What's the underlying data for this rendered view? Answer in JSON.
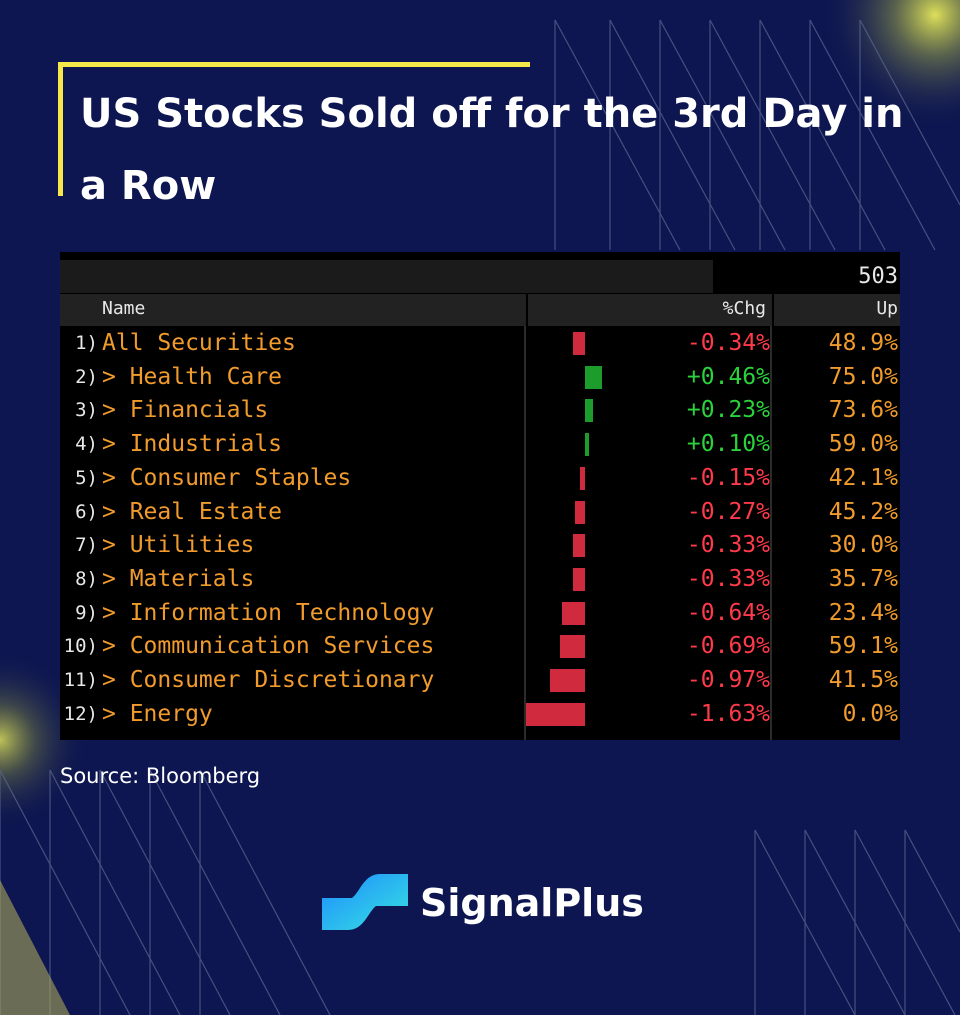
{
  "title": "US Stocks Sold off for the 3rd Day in a Row",
  "source": "Source: Bloomberg",
  "brand": "SignalPlus",
  "colors": {
    "background": "#0d1650",
    "accent": "#f5e84a",
    "positive": "#1c9c2a",
    "negative": "#d02a3e",
    "label": "#f19b2c"
  },
  "chart_data": {
    "type": "table",
    "title": "503 Securities",
    "columns": [
      "Name",
      "%Chg",
      "Up"
    ],
    "rows": [
      {
        "idx": "1)",
        "name": "All Securities",
        "chg": -0.34,
        "chg_label": "-0.34%",
        "up": "48.9%"
      },
      {
        "idx": "2)",
        "name": "> Health Care",
        "chg": 0.46,
        "chg_label": "+0.46%",
        "up": "75.0%"
      },
      {
        "idx": "3)",
        "name": "> Financials",
        "chg": 0.23,
        "chg_label": "+0.23%",
        "up": "73.6%"
      },
      {
        "idx": "4)",
        "name": "> Industrials",
        "chg": 0.1,
        "chg_label": "+0.10%",
        "up": "59.0%"
      },
      {
        "idx": "5)",
        "name": "> Consumer Staples",
        "chg": -0.15,
        "chg_label": "-0.15%",
        "up": "42.1%"
      },
      {
        "idx": "6)",
        "name": "> Real Estate",
        "chg": -0.27,
        "chg_label": "-0.27%",
        "up": "45.2%"
      },
      {
        "idx": "7)",
        "name": "> Utilities",
        "chg": -0.33,
        "chg_label": "-0.33%",
        "up": "30.0%"
      },
      {
        "idx": "8)",
        "name": "> Materials",
        "chg": -0.33,
        "chg_label": "-0.33%",
        "up": "35.7%"
      },
      {
        "idx": "9)",
        "name": "> Information Technology",
        "chg": -0.64,
        "chg_label": "-0.64%",
        "up": "23.4%"
      },
      {
        "idx": "10)",
        "name": "> Communication Services",
        "chg": -0.69,
        "chg_label": "-0.69%",
        "up": "59.1%"
      },
      {
        "idx": "11)",
        "name": "> Consumer Discretionary",
        "chg": -0.97,
        "chg_label": "-0.97%",
        "up": "41.5%"
      },
      {
        "idx": "12)",
        "name": "> Energy",
        "chg": -1.63,
        "chg_label": "-1.63%",
        "up": "0.0%"
      }
    ]
  }
}
